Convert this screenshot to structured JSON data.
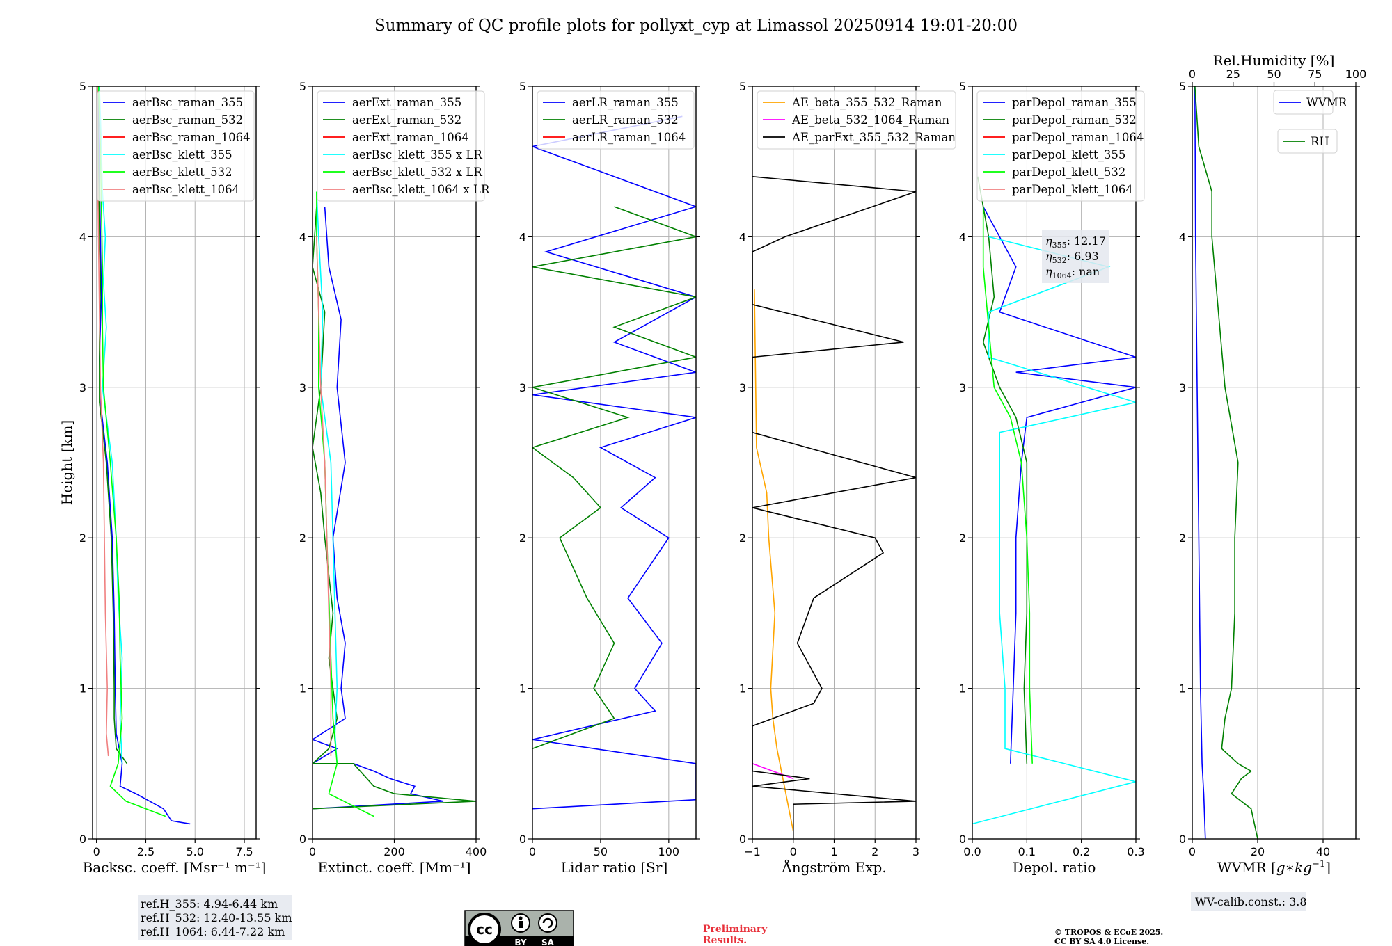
{
  "figure": {
    "title": "Summary of QC profile plots for pollyxt_cyp at Limassol 20250914 19:01-20:00",
    "ylabel": "Height [km]",
    "ref_box": [
      "ref.H_355: 4.94-6.44 km",
      "ref.H_532: 12.40-13.55 km",
      "ref.H_1064: 6.44-7.22 km"
    ],
    "wv_calib": "WV-calib.const.: 3.8",
    "preliminary": [
      "Preliminary",
      "Results."
    ],
    "copyright": [
      "© TROPOS & ECoE 2025.",
      "CC BY SA 4.0 License."
    ],
    "cc_badge": {
      "by": "BY",
      "sa": "SA"
    },
    "depol_box": {
      "eta355": {
        "sym": "η",
        "sub": "355",
        "val": ": 12.17"
      },
      "eta532": {
        "sym": "η",
        "sub": "532",
        "val": ": 6.93"
      },
      "eta1064": {
        "sym": "η",
        "sub": "1064",
        "val": ": nan"
      }
    },
    "rh_axis": {
      "label": "Rel.Humidity [%]",
      "ticks": [
        0,
        25,
        50,
        75,
        100
      ],
      "range": [
        0,
        100
      ]
    },
    "colors": {
      "blue": "#0000ff",
      "green": "#008000",
      "red": "#ff0000",
      "cyan": "#00ffff",
      "lime": "#00ff00",
      "salmon": "#f08080",
      "orange": "#ffa500",
      "magenta": "#ff00ff",
      "black": "#000000"
    }
  },
  "chart_data": [
    {
      "type": "line",
      "xlabel": "Backsc. coeff. [Msr⁻¹ m⁻¹]",
      "xlim": [
        -0.2,
        8.1
      ],
      "ylim": [
        0,
        5
      ],
      "xticks": [
        0,
        2.5,
        5,
        7.5
      ],
      "xtick_labels": [
        "0",
        "2.5",
        "5.0",
        "7.5"
      ],
      "yticks": [
        0,
        1,
        2,
        3,
        4,
        5
      ],
      "grid": true,
      "legend": "upper-left",
      "series": [
        {
          "name": "aerBsc_raman_355",
          "color": "#0000ff",
          "y": [
            0.1,
            0.12,
            0.2,
            0.3,
            0.35,
            0.5,
            0.7,
            1.0,
            1.5,
            2.0,
            2.5,
            2.9,
            3.2,
            3.6,
            4.0,
            4.4,
            4.8,
            5.0
          ],
          "x": [
            4.75,
            3.8,
            3.4,
            2.0,
            1.2,
            1.3,
            1.0,
            0.95,
            0.9,
            0.8,
            0.55,
            0.2,
            0.15,
            0.25,
            0.2,
            0.15,
            0.1,
            0.1
          ]
        },
        {
          "name": "aerBsc_raman_532",
          "color": "#008000",
          "y": [
            0.5,
            0.6,
            0.8,
            1.0,
            1.5,
            2.0,
            2.5,
            2.9,
            3.3,
            3.7,
            4.0,
            4.5,
            5.0
          ],
          "x": [
            1.55,
            1.0,
            0.9,
            0.9,
            0.85,
            0.75,
            0.5,
            0.15,
            0.15,
            0.2,
            0.15,
            0.1,
            0.05
          ]
        },
        {
          "name": "aerBsc_raman_1064",
          "color": "#ff0000",
          "y": [],
          "x": []
        },
        {
          "name": "aerBsc_klett_355",
          "color": "#00ffff",
          "y": [
            0.5,
            0.8,
            1.2,
            1.6,
            2.0,
            2.5,
            3.0,
            3.4,
            3.7,
            4.0,
            4.3,
            4.6,
            5.0
          ],
          "x": [
            1.3,
            1.2,
            1.3,
            1.1,
            1.0,
            0.8,
            0.3,
            0.5,
            0.35,
            0.45,
            0.3,
            0.25,
            0.15
          ]
        },
        {
          "name": "aerBsc_klett_532",
          "color": "#00ff00",
          "y": [
            0.15,
            0.25,
            0.35,
            0.5,
            0.8,
            1.2,
            1.6,
            2.0,
            2.5,
            3.0,
            3.4,
            3.8,
            4.2,
            4.6,
            5.0
          ],
          "x": [
            3.5,
            1.5,
            0.7,
            1.1,
            1.3,
            1.2,
            1.15,
            1.0,
            0.7,
            0.35,
            0.3,
            0.3,
            0.25,
            0.2,
            0.1
          ]
        },
        {
          "name": "aerBsc_klett_1064",
          "color": "#f08080",
          "y": [
            0.55,
            0.7,
            1.0,
            1.5,
            2.0,
            2.5,
            3.0,
            3.5,
            4.0,
            4.5,
            5.0
          ],
          "x": [
            0.6,
            0.5,
            0.55,
            0.45,
            0.4,
            0.35,
            0.2,
            0.15,
            0.1,
            0.05,
            0.05
          ]
        }
      ]
    },
    {
      "type": "line",
      "xlabel": "Extinct. coeff. [Mm⁻¹]",
      "xlim": [
        0,
        400
      ],
      "ylim": [
        0,
        5
      ],
      "xticks": [
        0,
        200,
        400
      ],
      "xtick_labels": [
        "0",
        "200",
        "400"
      ],
      "yticks": [
        0,
        1,
        2,
        3,
        4,
        5
      ],
      "grid": true,
      "legend": "upper-left",
      "series": [
        {
          "name": "aerExt_raman_355",
          "color": "#0000ff",
          "y": [
            0.2,
            0.25,
            0.3,
            0.35,
            0.4,
            0.45,
            0.5,
            0.5,
            0.6,
            0.66,
            0.8,
            1.0,
            1.3,
            1.6,
            2.0,
            2.5,
            3.0,
            3.45,
            3.8,
            4.2
          ],
          "x": [
            0,
            320,
            240,
            250,
            190,
            150,
            100,
            0,
            60,
            0,
            80,
            70,
            80,
            60,
            50,
            80,
            60,
            70,
            40,
            30
          ]
        },
        {
          "name": "aerExt_raman_532",
          "color": "#008000",
          "y": [
            0.2,
            0.25,
            0.3,
            0.35,
            0.5,
            0.5,
            0.6,
            0.8,
            1.0,
            1.2,
            1.5,
            2.0,
            2.3,
            2.6,
            3.0,
            3.5,
            3.8,
            4.2
          ],
          "x": [
            0,
            400,
            200,
            150,
            100,
            0,
            40,
            60,
            50,
            40,
            50,
            30,
            20,
            0,
            20,
            30,
            0,
            10
          ]
        },
        {
          "name": "aerExt_raman_1064",
          "color": "#ff0000",
          "y": [],
          "x": []
        },
        {
          "name": "aerBsc_klett_355 x LR",
          "color": "#00ffff",
          "y": [
            0.5,
            0.7,
            1.0,
            1.5,
            2.0,
            2.5,
            3.0,
            3.5,
            4.0,
            4.3
          ],
          "x": [
            60,
            55,
            60,
            55,
            50,
            45,
            20,
            25,
            15,
            10
          ]
        },
        {
          "name": "aerBsc_klett_532 x LR",
          "color": "#00ff00",
          "y": [
            0.15,
            0.3,
            0.5,
            0.8,
            1.2,
            1.6,
            2.0,
            2.5,
            3.0,
            3.5,
            4.0,
            4.3
          ],
          "x": [
            150,
            40,
            60,
            50,
            45,
            40,
            35,
            30,
            15,
            15,
            10,
            10
          ]
        },
        {
          "name": "aerBsc_klett_1064 x LR",
          "color": "#f08080",
          "y": [
            0.55,
            1.0,
            1.5,
            2.0,
            2.5,
            3.0,
            3.5,
            4.0
          ],
          "x": [
            45,
            45,
            40,
            35,
            30,
            20,
            15,
            10
          ]
        }
      ]
    },
    {
      "type": "line",
      "xlabel": "Lidar ratio [Sr]",
      "xlim": [
        0,
        120
      ],
      "ylim": [
        0,
        5
      ],
      "xticks": [
        0,
        50,
        100
      ],
      "xtick_labels": [
        "0",
        "50",
        "100"
      ],
      "yticks": [
        0,
        1,
        2,
        3,
        4,
        5
      ],
      "grid": true,
      "legend": "upper-left",
      "series": [
        {
          "name": "aerLR_raman_355",
          "color": "#0000ff",
          "y": [
            0.2,
            0.26,
            0.5,
            0.66,
            0.85,
            1.0,
            1.3,
            1.6,
            2.0,
            2.2,
            2.4,
            2.6,
            2.8,
            2.95,
            3.1,
            3.3,
            3.6,
            3.9,
            4.2,
            4.6,
            4.8
          ],
          "x": [
            0,
            120,
            120,
            0,
            90,
            75,
            95,
            70,
            100,
            65,
            90,
            50,
            120,
            0,
            120,
            60,
            120,
            10,
            120,
            0,
            110
          ]
        },
        {
          "name": "aerLR_raman_532",
          "color": "#008000",
          "y": [
            0.6,
            0.8,
            1.0,
            1.3,
            1.6,
            2.0,
            2.2,
            2.4,
            2.6,
            2.8,
            3.0,
            3.2,
            3.4,
            3.6,
            3.8,
            4.0,
            4.2
          ],
          "x": [
            0,
            60,
            45,
            60,
            40,
            20,
            50,
            30,
            0,
            70,
            0,
            120,
            60,
            120,
            0,
            120,
            60
          ]
        },
        {
          "name": "aerLR_raman_1064",
          "color": "#ff0000",
          "y": [],
          "x": []
        }
      ]
    },
    {
      "type": "line",
      "xlabel": "Ångström Exp.",
      "xlim": [
        -1,
        3
      ],
      "ylim": [
        0,
        5
      ],
      "xticks": [
        -1,
        0,
        1,
        2,
        3
      ],
      "xtick_labels": [
        "−1",
        "0",
        "1",
        "2",
        "3"
      ],
      "yticks": [
        0,
        1,
        2,
        3,
        4,
        5
      ],
      "grid": true,
      "legend": "upper-left",
      "series": [
        {
          "name": "AE_beta_355_532_Raman",
          "color": "#ffa500",
          "y": [
            0.05,
            0.6,
            0.8,
            1.0,
            1.5,
            2.0,
            2.3,
            2.6,
            3.65
          ],
          "x": [
            0,
            -0.4,
            -0.5,
            -0.55,
            -0.45,
            -0.6,
            -0.65,
            -0.9,
            -0.95
          ]
        },
        {
          "name": "AE_beta_532_1064_Raman",
          "color": "#ff00ff",
          "y": [
            0.5,
            0.4
          ],
          "x": [
            -1,
            0
          ]
        },
        {
          "name": "AE_parExt_355_532_Raman",
          "color": "#000000",
          "y": [
            0.0,
            0.23,
            0.25,
            0.35,
            0.4,
            0.45,
            0.75,
            0.9,
            1.0,
            1.3,
            1.6,
            1.9,
            2.0,
            2.2,
            2.4,
            2.7,
            3.2,
            3.3,
            3.55,
            3.9,
            4.0,
            4.3,
            4.4
          ],
          "x": [
            0,
            0,
            3,
            -1,
            0.4,
            -1,
            -1,
            0.5,
            0.7,
            0.1,
            0.5,
            2.2,
            2.0,
            -1,
            3,
            -1,
            -1,
            2.7,
            -1,
            -1,
            -0.2,
            3,
            -1
          ]
        }
      ]
    },
    {
      "type": "line",
      "xlabel": "Depol. ratio",
      "xlim": [
        0,
        0.3
      ],
      "ylim": [
        0,
        5
      ],
      "xticks": [
        0,
        0.1,
        0.2,
        0.3
      ],
      "xtick_labels": [
        "0.0",
        "0.1",
        "0.2",
        "0.3"
      ],
      "yticks": [
        0,
        1,
        2,
        3,
        4,
        5
      ],
      "grid": true,
      "legend": "upper-left",
      "series": [
        {
          "name": "parDepol_raman_355",
          "color": "#0000ff",
          "y": [
            0.5,
            1.0,
            1.5,
            2.0,
            2.5,
            2.8,
            3.0,
            3.1,
            3.2,
            3.5,
            3.8,
            4.0,
            4.2
          ],
          "x": [
            0.07,
            0.075,
            0.08,
            0.08,
            0.09,
            0.1,
            0.3,
            0.08,
            0.3,
            0.05,
            0.08,
            0.05,
            0.02
          ]
        },
        {
          "name": "parDepol_raman_532",
          "color": "#008000",
          "y": [
            0.5,
            1.0,
            1.5,
            2.0,
            2.5,
            2.8,
            3.0,
            3.3,
            3.6,
            4.0,
            4.4
          ],
          "x": [
            0.1,
            0.095,
            0.1,
            0.1,
            0.1,
            0.08,
            0.05,
            0.02,
            0.04,
            0.03,
            0.01
          ]
        },
        {
          "name": "parDepol_raman_1064",
          "color": "#ff0000",
          "y": [],
          "x": []
        },
        {
          "name": "parDepol_klett_355",
          "color": "#00ffff",
          "y": [
            0.1,
            0.38,
            0.6,
            1.0,
            1.5,
            2.0,
            2.5,
            2.7,
            2.9,
            3.2,
            3.5,
            3.8,
            4.0
          ],
          "x": [
            0,
            0.3,
            0.06,
            0.06,
            0.05,
            0.05,
            0.05,
            0.05,
            0.3,
            0.03,
            0.03,
            0.25,
            0.03
          ]
        },
        {
          "name": "parDepol_klett_532",
          "color": "#00ff00",
          "y": [
            0.5,
            1.0,
            1.5,
            2.0,
            2.5,
            2.8,
            3.0,
            3.4,
            3.8,
            4.2
          ],
          "x": [
            0.11,
            0.105,
            0.105,
            0.1,
            0.09,
            0.07,
            0.04,
            0.03,
            0.02,
            0.02
          ]
        },
        {
          "name": "parDepol_klett_1064",
          "color": "#f08080",
          "y": [],
          "x": []
        }
      ]
    },
    {
      "type": "line",
      "xlabel": "WVMR [$g*kg^{-1}$]",
      "xlabel_parts": {
        "pre": "WVMR [",
        "g": "g",
        "star": "∗",
        "kg": "kg",
        "exp": "−1",
        "post": "]"
      },
      "xlim": [
        0,
        50
      ],
      "ylim": [
        0,
        5
      ],
      "xticks": [
        0,
        20,
        40
      ],
      "xtick_labels": [
        "0",
        "20",
        "40"
      ],
      "yticks": [
        0,
        1,
        2,
        3,
        4,
        5
      ],
      "grid": true,
      "legend": "upper-right",
      "series": [
        {
          "name": "WVMR",
          "color": "#0000ff",
          "y": [
            0,
            0.3,
            0.5,
            1.0,
            2.0,
            3.0,
            4.0,
            5.0
          ],
          "x": [
            4,
            3.5,
            3,
            2.5,
            2,
            1.5,
            1,
            0.8
          ]
        },
        {
          "name": "RH",
          "color": "#008000",
          "y": [
            0.0,
            0.2,
            0.3,
            0.4,
            0.45,
            0.5,
            0.6,
            0.8,
            1.0,
            1.5,
            2.0,
            2.5,
            3.0,
            3.5,
            4.0,
            4.3,
            4.6,
            5.0
          ],
          "x": [
            20,
            18,
            12,
            15,
            18,
            14,
            9,
            10,
            12,
            13,
            13,
            14,
            10,
            8,
            6,
            6,
            2,
            0.8
          ]
        }
      ]
    }
  ]
}
